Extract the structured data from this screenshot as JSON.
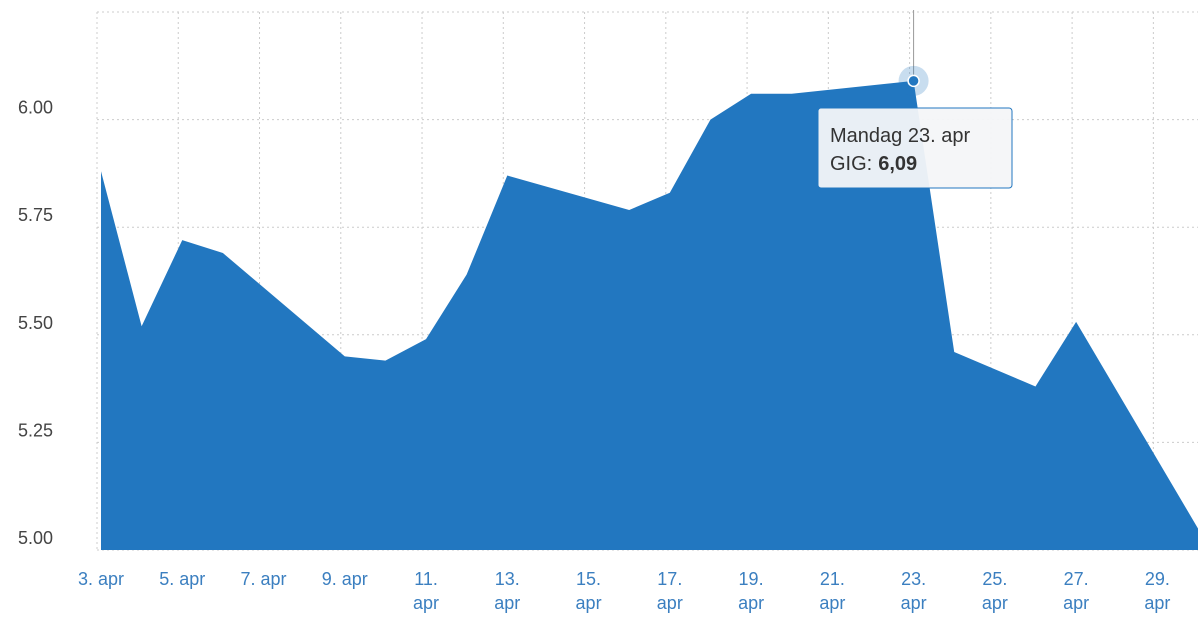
{
  "chart_data": {
    "type": "area",
    "x": [
      3,
      4,
      5,
      6,
      9,
      10,
      11,
      12,
      13,
      16,
      17,
      18,
      19,
      20,
      23,
      24,
      25,
      26,
      27,
      30
    ],
    "series": [
      {
        "color": "#2277c0",
        "values": [
          5.88,
          5.52,
          5.72,
          5.69,
          5.45,
          5.44,
          5.49,
          5.64,
          5.87,
          5.79,
          5.83,
          6.0,
          6.06,
          6.06,
          6.09,
          5.46,
          5.42,
          5.38,
          5.53,
          5.05
        ]
      }
    ],
    "xlim": [
      3,
      30
    ],
    "xticks": [
      {
        "value": 3,
        "label": "3. apr"
      },
      {
        "value": 5,
        "label": "5. apr"
      },
      {
        "value": 7,
        "label": "7. apr"
      },
      {
        "value": 9,
        "label": "9. apr"
      },
      {
        "value": 11,
        "label": "11. apr"
      },
      {
        "value": 13,
        "label": "13. apr"
      },
      {
        "value": 15,
        "label": "15. apr"
      },
      {
        "value": 17,
        "label": "17. apr"
      },
      {
        "value": 19,
        "label": "19. apr"
      },
      {
        "value": 21,
        "label": "21. apr"
      },
      {
        "value": 23,
        "label": "23. apr"
      },
      {
        "value": 25,
        "label": "25. apr"
      },
      {
        "value": 27,
        "label": "27. apr"
      },
      {
        "value": 29,
        "label": "29. apr"
      }
    ],
    "ylim": [
      5,
      6.25
    ],
    "yticks": [
      {
        "value": 5,
        "label": "5.00"
      },
      {
        "value": 5.25,
        "label": "5.25"
      },
      {
        "value": 5.5,
        "label": "5.50"
      },
      {
        "value": 5.75,
        "label": "5.75"
      },
      {
        "value": 6,
        "label": "6.00"
      }
    ],
    "grid": true,
    "tooltip": {
      "title": "Mandag 23. apr",
      "label": "GIG:",
      "value_label": "6,09"
    }
  }
}
